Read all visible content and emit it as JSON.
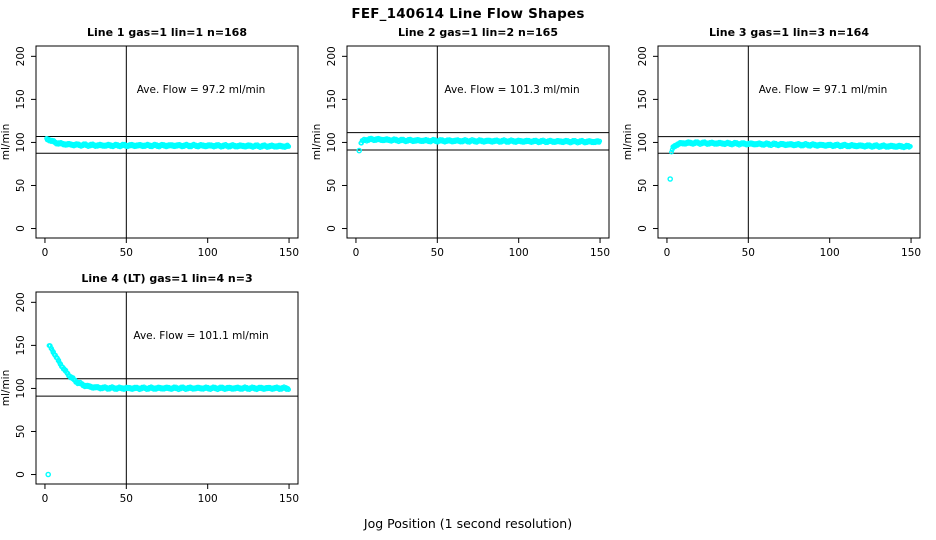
{
  "page": {
    "title": "FEF_140614  Line Flow Shapes",
    "xlabel": "Jog Position (1 second resolution)"
  },
  "colors": {
    "points": "#00ffff",
    "axis": "#000000",
    "background": "#ffffff"
  },
  "layout": {
    "xlim": [
      -5.5,
      155.5
    ],
    "ylim": [
      -11,
      212
    ],
    "grid": "off",
    "panels": 4,
    "panel_grid": "2 rows x 3 cols (4th row-2 col-1)"
  },
  "chart_data": [
    {
      "type": "scatter",
      "title": "Line 1 gas=1 lin=1 n=168",
      "annotation": "Ave. Flow =  97.2  ml/min",
      "ave_flow": 97.2,
      "n": 168,
      "ylabel": "ml/min",
      "xticks": [
        0,
        50,
        100,
        150
      ],
      "yticks": [
        0,
        50,
        100,
        150,
        200
      ],
      "vline_x": 50,
      "hlines": [
        106.9,
        87.5
      ],
      "profile": [
        [
          1,
          103.2
        ],
        [
          2,
          103.8
        ],
        [
          3,
          103
        ],
        [
          4.5,
          101.3
        ],
        [
          6.5,
          99.8
        ],
        [
          9,
          98.7
        ],
        [
          13,
          97.8
        ],
        [
          20,
          97.1
        ],
        [
          35,
          96.5
        ],
        [
          60,
          96.4
        ],
        [
          90,
          96.3
        ],
        [
          120,
          95.9
        ],
        [
          150,
          95.5
        ]
      ],
      "outliers": []
    },
    {
      "type": "scatter",
      "title": "Line 2 gas=1 lin=2 n=165",
      "annotation": "Ave. Flow =  101.3  ml/min",
      "ave_flow": 101.3,
      "n": 165,
      "ylabel": "ml/min",
      "xticks": [
        0,
        50,
        100,
        150
      ],
      "yticks": [
        0,
        50,
        100,
        150,
        200
      ],
      "vline_x": 50,
      "hlines": [
        111.4,
        91.2
      ],
      "profile": [
        [
          3,
          99
        ],
        [
          4,
          101.5
        ],
        [
          5.5,
          102.8
        ],
        [
          8,
          103.4
        ],
        [
          12,
          103.5
        ],
        [
          18,
          103
        ],
        [
          28,
          102.4
        ],
        [
          45,
          102
        ],
        [
          70,
          101.7
        ],
        [
          100,
          101.4
        ],
        [
          130,
          101
        ],
        [
          150,
          100.7
        ]
      ],
      "outliers": [
        [
          2,
          90.5
        ]
      ]
    },
    {
      "type": "scatter",
      "title": "Line 3 gas=1 lin=3 n=164",
      "annotation": "Ave. Flow =  97.1  ml/min",
      "ave_flow": 97.1,
      "n": 164,
      "ylabel": "ml/min",
      "xticks": [
        0,
        50,
        100,
        150
      ],
      "yticks": [
        0,
        50,
        100,
        150,
        200
      ],
      "vline_x": 50,
      "hlines": [
        106.8,
        87.4
      ],
      "profile": [
        [
          2.8,
          89
        ],
        [
          3.5,
          93
        ],
        [
          4.5,
          95.5
        ],
        [
          6,
          97.5
        ],
        [
          8,
          98.7
        ],
        [
          12,
          99.3
        ],
        [
          20,
          99.3
        ],
        [
          35,
          98.8
        ],
        [
          60,
          98
        ],
        [
          90,
          97
        ],
        [
          120,
          96
        ],
        [
          150,
          95.2
        ]
      ],
      "outliers": [
        [
          2,
          57.5
        ]
      ]
    },
    {
      "type": "scatter",
      "title": "Line 4 (LT) gas=1 lin=4 n=3",
      "annotation": "Ave. Flow =  101.1  ml/min",
      "ave_flow": 101.1,
      "n": 3,
      "ylabel": "ml/min",
      "xticks": [
        0,
        50,
        100,
        150
      ],
      "yticks": [
        0,
        50,
        100,
        150,
        200
      ],
      "vline_x": 50,
      "hlines": [
        111.2,
        91.0
      ],
      "profile": [
        [
          2.5,
          150
        ],
        [
          3,
          149
        ],
        [
          4,
          146
        ],
        [
          5,
          143
        ],
        [
          6,
          139.5
        ],
        [
          7,
          136
        ],
        [
          8,
          133
        ],
        [
          9,
          130
        ],
        [
          10,
          127
        ],
        [
          12,
          121.5
        ],
        [
          14,
          117
        ],
        [
          16,
          113
        ],
        [
          18,
          109.5
        ],
        [
          20,
          107
        ],
        [
          23,
          104.3
        ],
        [
          26,
          102.6
        ],
        [
          30,
          101.3
        ],
        [
          35,
          100.6
        ],
        [
          45,
          100.2
        ],
        [
          60,
          100.2
        ],
        [
          90,
          100.3
        ],
        [
          120,
          100.2
        ],
        [
          150,
          100.2
        ]
      ],
      "outliers": [
        [
          2,
          0
        ]
      ]
    }
  ]
}
